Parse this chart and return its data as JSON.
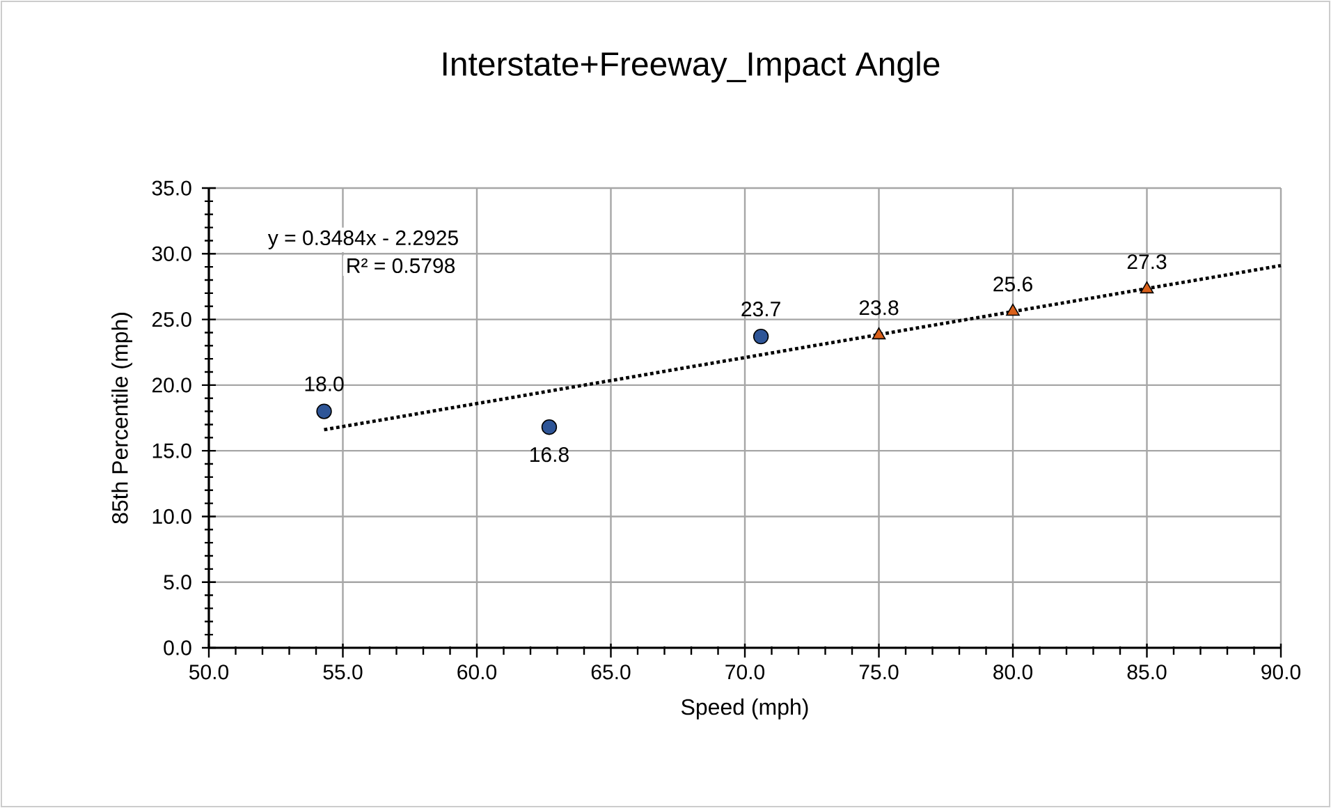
{
  "chart_data": {
    "type": "scatter",
    "title": "Interstate+Freeway_Impact Angle",
    "xlabel": "Speed (mph)",
    "ylabel": "85th Percentile (mph)",
    "xlim": [
      50,
      90
    ],
    "ylim": [
      0,
      35
    ],
    "xticks": [
      {
        "value": 50,
        "label": "50.0"
      },
      {
        "value": 55,
        "label": "55.0"
      },
      {
        "value": 60,
        "label": "60.0"
      },
      {
        "value": 65,
        "label": "65.0"
      },
      {
        "value": 70,
        "label": "70.0"
      },
      {
        "value": 75,
        "label": "75.0"
      },
      {
        "value": 80,
        "label": "80.0"
      },
      {
        "value": 85,
        "label": "85.0"
      },
      {
        "value": 90,
        "label": "90.0"
      }
    ],
    "yticks": [
      {
        "value": 0,
        "label": "0.0"
      },
      {
        "value": 5,
        "label": "5.0"
      },
      {
        "value": 10,
        "label": "10.0"
      },
      {
        "value": 15,
        "label": "15.0"
      },
      {
        "value": 20,
        "label": "20.0"
      },
      {
        "value": 25,
        "label": "25.0"
      },
      {
        "value": 30,
        "label": "30.0"
      },
      {
        "value": 35,
        "label": "35.0"
      }
    ],
    "grid": true,
    "annotations": [
      "y = 0.3484x - 2.2925",
      "R² = 0.5798"
    ],
    "series": [
      {
        "marker": "circle",
        "color": "#2e5597",
        "x": [
          54.3,
          62.7,
          70.6
        ],
        "values": [
          18.0,
          16.8,
          23.7
        ],
        "value_labels": [
          "18.0",
          "16.8",
          "23.7"
        ]
      },
      {
        "marker": "triangle",
        "color": "#d9601a",
        "x": [
          75,
          80,
          85
        ],
        "values": [
          23.8,
          25.6,
          27.3
        ],
        "value_labels": [
          "23.8",
          "25.6",
          "27.3"
        ]
      },
      {
        "type": "line",
        "marker": "none",
        "line_style": "dotted",
        "color": "#000000",
        "x": [
          54.3,
          90
        ],
        "values": [
          16.6,
          29.1
        ]
      }
    ]
  }
}
